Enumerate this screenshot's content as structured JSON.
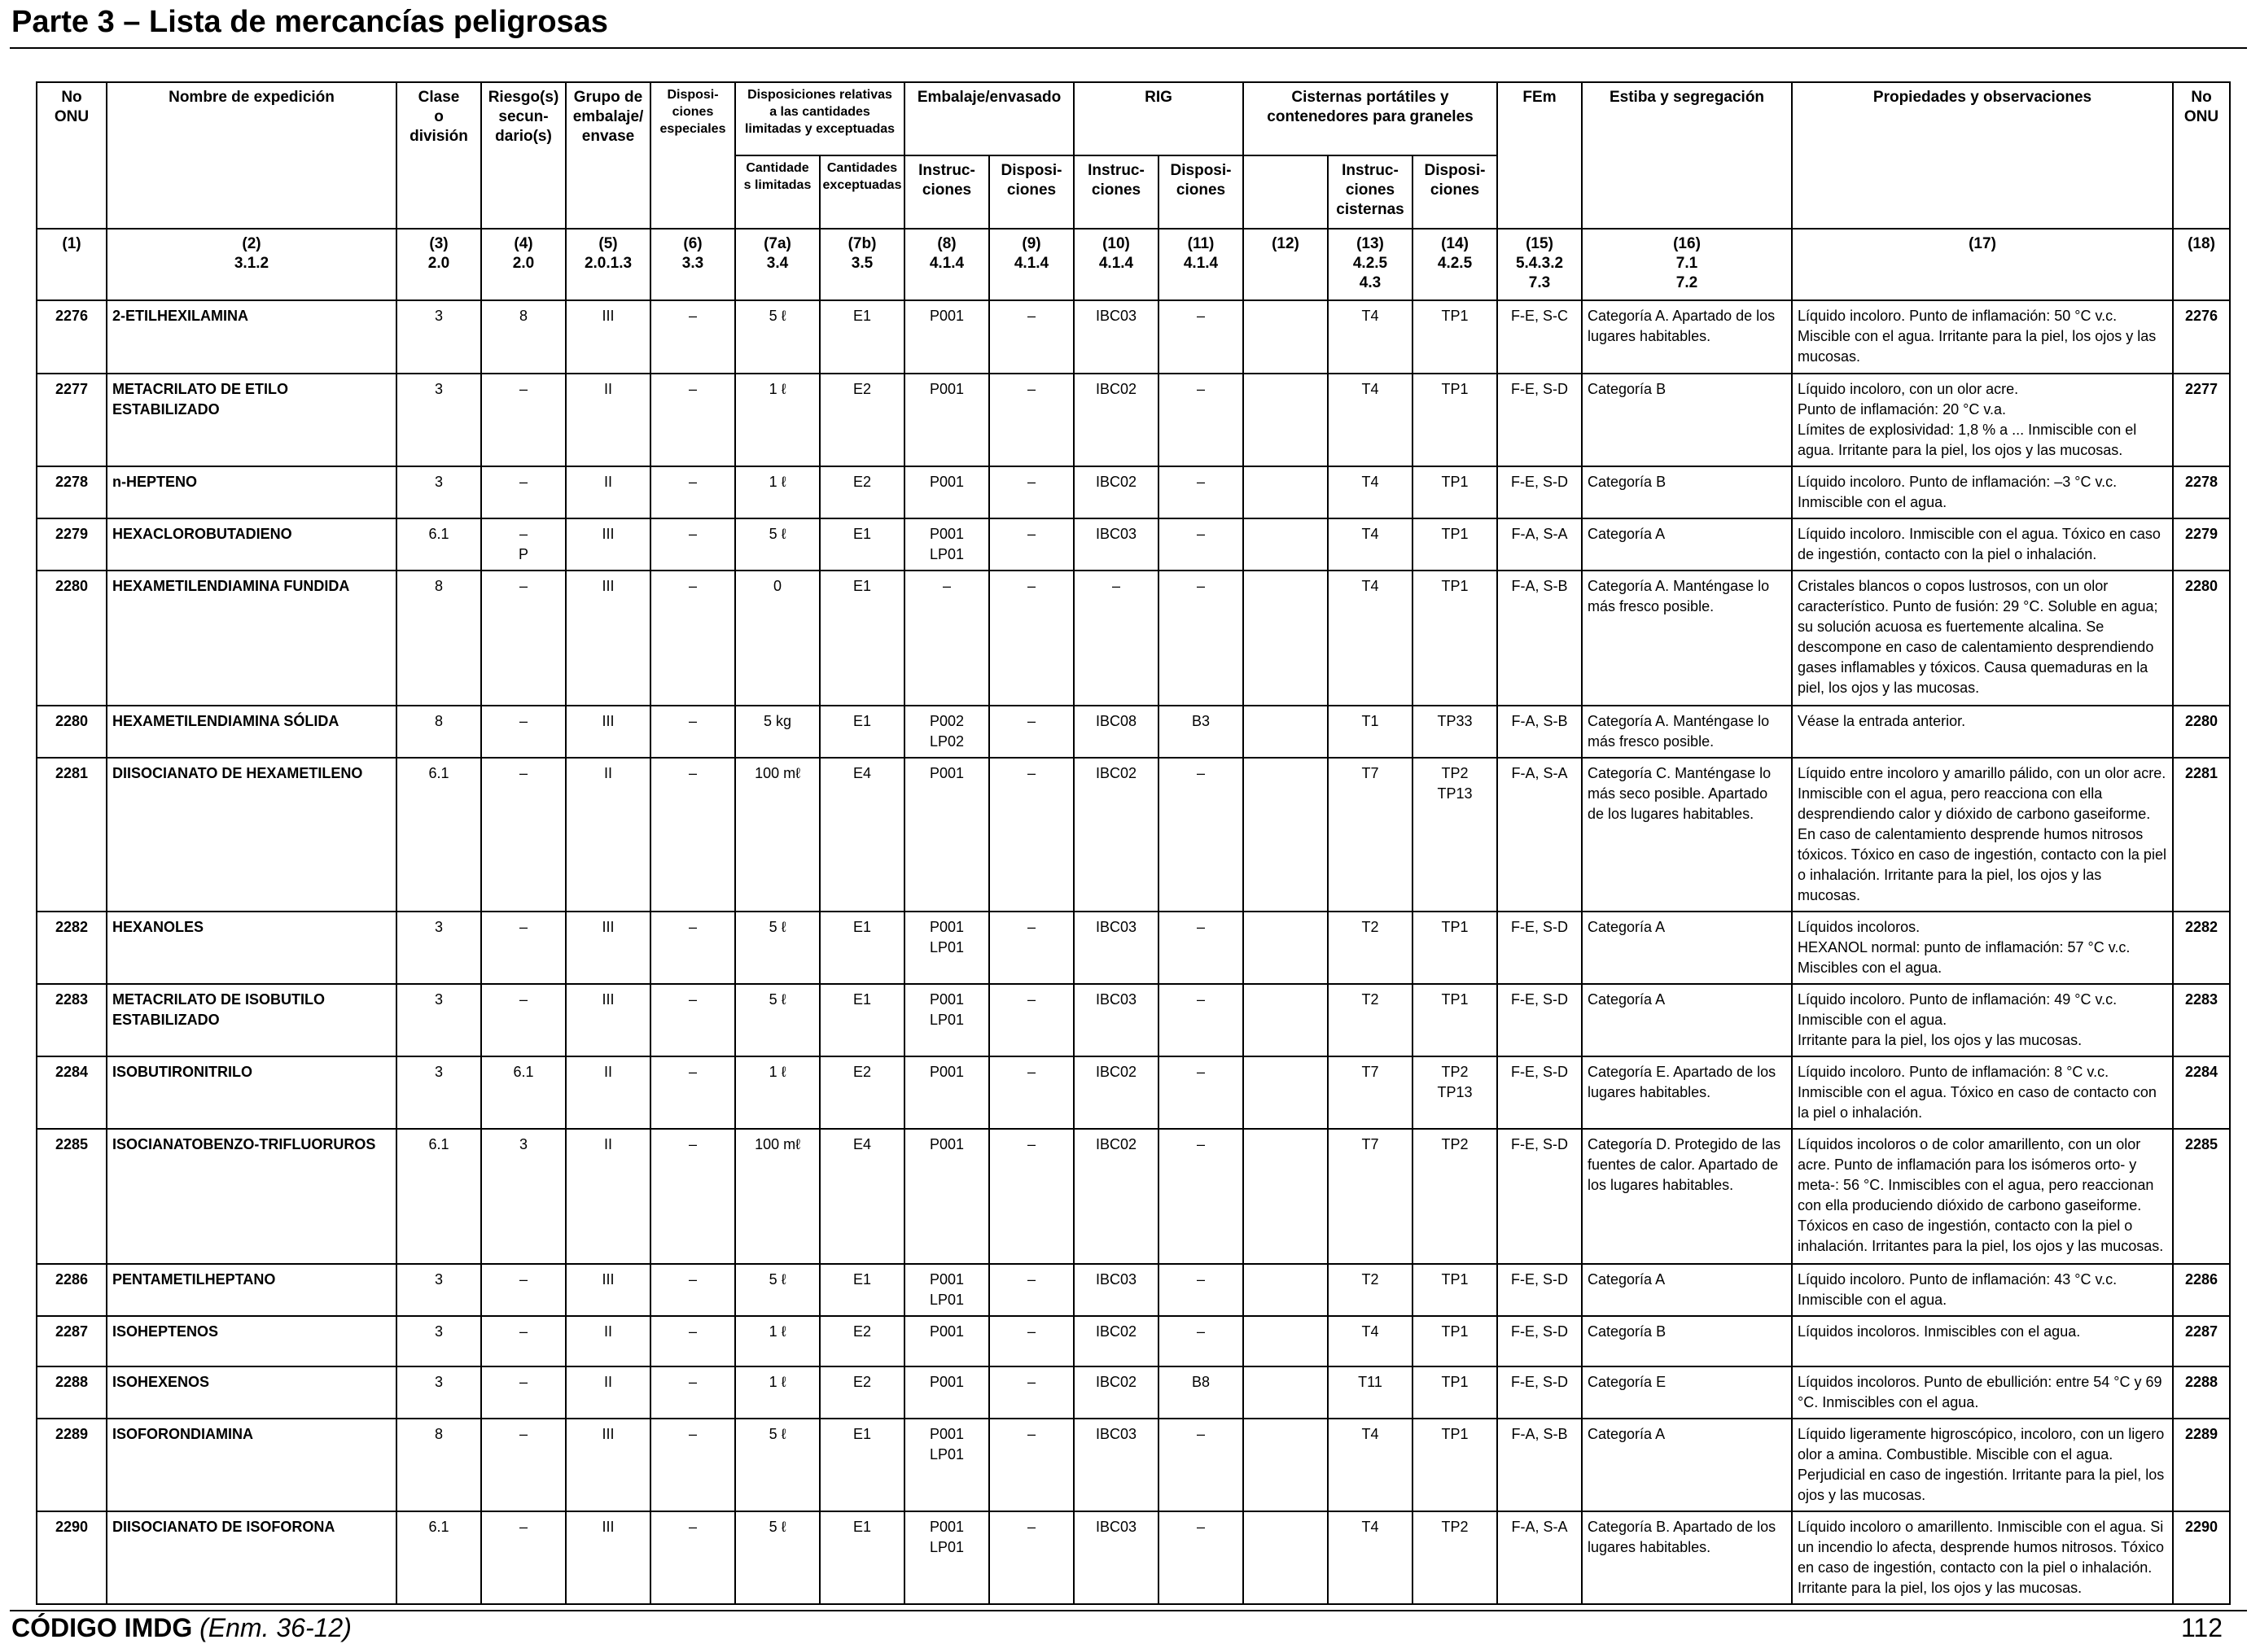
{
  "header": {
    "title": "Parte 3 – Lista de mercancías peligrosas"
  },
  "columns": {
    "onu": "No\nONU",
    "nombre": "Nombre de expedición",
    "clase": "Clase\no\ndivisión",
    "riesgo": "Riesgo(s)\nsecun-\ndario(s)",
    "grupo": "Grupo de\nembalaje/\nenvase",
    "disp_esp": "Disposi-\nciones\nespeciales",
    "cant_group": "Disposiciones relativas\na las cantidades\nlimitadas y exceptuadas",
    "cant_lim": "Cantidade\ns limitadas",
    "cant_exc": "Cantidades\nexceptuadas",
    "emb_group": "Embalaje/envasado",
    "emb_instr": "Instruc-\nciones",
    "emb_disp": "Disposi-\nciones",
    "rig_group": "RIG",
    "rig_instr": "Instruc-\nciones",
    "rig_disp": "Disposi-\nciones",
    "cist_group": "Cisternas portátiles y\ncontenedores para graneles",
    "cist_instr": "Instruc-\nciones\ncisternas",
    "cist_disp": "Disposi-\nciones",
    "fem": "FEm",
    "estiba": "Estiba y segregación",
    "prop": "Propiedades y observaciones",
    "onu_right": "No\nONU"
  },
  "refs": [
    "(1)",
    "(2)\n3.1.2",
    "(3)\n2.0",
    "(4)\n2.0",
    "(5)\n2.0.1.3",
    "(6)\n3.3",
    "(7a)\n3.4",
    "(7b)\n3.5",
    "(8)\n4.1.4",
    "(9)\n4.1.4",
    "(10)\n4.1.4",
    "(11)\n4.1.4",
    "(12)",
    "(13)\n4.2.5\n4.3",
    "(14)\n4.2.5",
    "(15)\n5.4.3.2\n7.3",
    "(16)\n7.1\n7.2",
    "(17)",
    "(18)"
  ],
  "rows": [
    {
      "onu": "2276",
      "name": "2-ETILHEXILAMINA",
      "clase": "3",
      "riesgo": "8",
      "grupo": "III",
      "esp": "–",
      "lim": "5 ℓ",
      "exc": "E1",
      "emb_i": "P001",
      "emb_d": "–",
      "rig_i": "IBC03",
      "rig_d": "–",
      "c12": "",
      "cist_i": "T4",
      "cist_d": "TP1",
      "fem": "F-E, S-C",
      "estiba": "Categoría A. Apartado de los lugares habitables.",
      "prop": "Líquido incoloro. Punto de inflamación: 50 °C v.c. Miscible con el agua. Irritante para la piel, los ojos y las mucosas.",
      "onu_r": "2276"
    },
    {
      "onu": "2277",
      "name": "METACRILATO DE ETILO ESTABILIZADO",
      "clase": "3",
      "riesgo": "–",
      "grupo": "II",
      "esp": "–",
      "lim": "1 ℓ",
      "exc": "E2",
      "emb_i": "P001",
      "emb_d": "–",
      "rig_i": "IBC02",
      "rig_d": "–",
      "c12": "",
      "cist_i": "T4",
      "cist_d": "TP1",
      "fem": "F-E, S-D",
      "estiba": "Categoría B",
      "prop": "Líquido incoloro, con un olor acre.\nPunto de inflamación: 20 °C v.a.\nLímites de explosividad: 1,8 % a ... Inmiscible con el agua. Irritante para la piel, los ojos y las mucosas.",
      "onu_r": "2277"
    },
    {
      "onu": "2278",
      "name": "n-HEPTENO",
      "clase": "3",
      "riesgo": "–",
      "grupo": "II",
      "esp": "–",
      "lim": "1 ℓ",
      "exc": "E2",
      "emb_i": "P001",
      "emb_d": "–",
      "rig_i": "IBC02",
      "rig_d": "–",
      "c12": "",
      "cist_i": "T4",
      "cist_d": "TP1",
      "fem": "F-E, S-D",
      "estiba": "Categoría B",
      "prop": "Líquido incoloro. Punto de inflamación: –3 °C v.c. Inmiscible con el agua.",
      "onu_r": "2278"
    },
    {
      "onu": "2279",
      "name": "HEXACLOROBUTADIENO",
      "clase": "6.1",
      "riesgo": "–\nP",
      "grupo": "III",
      "esp": "–",
      "lim": "5 ℓ",
      "exc": "E1",
      "emb_i": "P001\nLP01",
      "emb_d": "–",
      "rig_i": "IBC03",
      "rig_d": "–",
      "c12": "",
      "cist_i": "T4",
      "cist_d": "TP1",
      "fem": "F-A, S-A",
      "estiba": "Categoría A",
      "prop": "Líquido incoloro. Inmiscible con el agua. Tóxico en caso de ingestión, contacto con la piel o inhalación.",
      "onu_r": "2279"
    },
    {
      "onu": "2280",
      "name": "HEXAMETILENDIAMINA FUNDIDA",
      "clase": "8",
      "riesgo": "–",
      "grupo": "III",
      "esp": "–",
      "lim": "0",
      "exc": "E1",
      "emb_i": "–",
      "emb_d": "–",
      "rig_i": "–",
      "rig_d": "–",
      "c12": "",
      "cist_i": "T4",
      "cist_d": "TP1",
      "fem": "F-A, S-B",
      "estiba": "Categoría A. Manténgase lo más fresco posible.",
      "prop": "Cristales blancos o copos lustrosos, con un olor característico. Punto de fusión: 29 °C. Soluble en agua; su solución acuosa es fuertemente alcalina. Se descompone en caso de calentamiento desprendiendo gases inflamables y tóxicos. Causa quemaduras en la piel, los ojos y las mucosas.",
      "onu_r": "2280"
    },
    {
      "onu": "2280",
      "name": "HEXAMETILENDIAMINA SÓLIDA",
      "clase": "8",
      "riesgo": "–",
      "grupo": "III",
      "esp": "–",
      "lim": "5 kg",
      "exc": "E1",
      "emb_i": "P002\nLP02",
      "emb_d": "–",
      "rig_i": "IBC08",
      "rig_d": "B3",
      "c12": "",
      "cist_i": "T1",
      "cist_d": "TP33",
      "fem": "F-A, S-B",
      "estiba": "Categoría A. Manténgase lo más fresco posible.",
      "prop": "Véase la entrada anterior.",
      "onu_r": "2280"
    },
    {
      "onu": "2281",
      "name": "DIISOCIANATO DE HEXAMETILENO",
      "clase": "6.1",
      "riesgo": "–",
      "grupo": "II",
      "esp": "–",
      "lim": "100 mℓ",
      "exc": "E4",
      "emb_i": "P001",
      "emb_d": "–",
      "rig_i": "IBC02",
      "rig_d": "–",
      "c12": "",
      "cist_i": "T7",
      "cist_d": "TP2\nTP13",
      "fem": "F-A, S-A",
      "estiba": "Categoría C. Manténgase lo más seco posible. Apartado de los lugares habitables.",
      "prop": "Líquido entre incoloro y amarillo pálido, con un olor acre. Inmiscible con el agua, pero reacciona con ella desprendiendo calor y dióxido de carbono gaseiforme. En caso de calentamiento desprende humos nitrosos tóxicos. Tóxico en caso de ingestión, contacto con la piel o inhalación. Irritante para la piel, los ojos y las mucosas.",
      "onu_r": "2281"
    },
    {
      "onu": "2282",
      "name": "HEXANOLES",
      "clase": "3",
      "riesgo": "–",
      "grupo": "III",
      "esp": "–",
      "lim": "5 ℓ",
      "exc": "E1",
      "emb_i": "P001\nLP01",
      "emb_d": "–",
      "rig_i": "IBC03",
      "rig_d": "–",
      "c12": "",
      "cist_i": "T2",
      "cist_d": "TP1",
      "fem": "F-E, S-D",
      "estiba": "Categoría A",
      "prop": "Líquidos incoloros.\nHEXANOL normal: punto de inflamación: 57 °C v.c. Miscibles con el agua.",
      "onu_r": "2282"
    },
    {
      "onu": "2283",
      "name": "METACRILATO DE ISOBUTILO ESTABILIZADO",
      "clase": "3",
      "riesgo": "–",
      "grupo": "III",
      "esp": "–",
      "lim": "5 ℓ",
      "exc": "E1",
      "emb_i": "P001\nLP01",
      "emb_d": "–",
      "rig_i": "IBC03",
      "rig_d": "–",
      "c12": "",
      "cist_i": "T2",
      "cist_d": "TP1",
      "fem": "F-E, S-D",
      "estiba": "Categoría A",
      "prop": "Líquido incoloro. Punto de inflamación: 49 °C v.c. Inmiscible con el agua.\nIrritante para la piel, los ojos y las mucosas.",
      "onu_r": "2283"
    },
    {
      "onu": "2284",
      "name": "ISOBUTIRONITRILO",
      "clase": "3",
      "riesgo": "6.1",
      "grupo": "II",
      "esp": "–",
      "lim": "1 ℓ",
      "exc": "E2",
      "emb_i": "P001",
      "emb_d": "–",
      "rig_i": "IBC02",
      "rig_d": "–",
      "c12": "",
      "cist_i": "T7",
      "cist_d": "TP2\nTP13",
      "fem": "F-E, S-D",
      "estiba": "Categoría E. Apartado de los lugares habitables.",
      "prop": "Líquido incoloro. Punto de inflamación: 8 °C v.c. Inmiscible con el agua. Tóxico en caso de contacto con la piel o inhalación.",
      "onu_r": "2284"
    },
    {
      "onu": "2285",
      "name": "ISOCIANATOBENZO-TRIFLUORUROS",
      "clase": "6.1",
      "riesgo": "3",
      "grupo": "II",
      "esp": "–",
      "lim": "100 mℓ",
      "exc": "E4",
      "emb_i": "P001",
      "emb_d": "–",
      "rig_i": "IBC02",
      "rig_d": "–",
      "c12": "",
      "cist_i": "T7",
      "cist_d": "TP2",
      "fem": "F-E, S-D",
      "estiba": "Categoría D. Protegido de las fuentes de calor. Apartado de los lugares habitables.",
      "prop": "Líquidos incoloros o de color amarillento, con un olor acre. Punto de inflamación para los isómeros orto- y meta-: 56 °C. Inmiscibles con el agua, pero reaccionan con ella produciendo dióxido de carbono gaseiforme. Tóxicos en caso de ingestión, contacto con la piel o inhalación. Irritantes para la piel, los ojos y las mucosas.",
      "onu_r": "2285"
    },
    {
      "onu": "2286",
      "name": "PENTAMETILHEPTANO",
      "clase": "3",
      "riesgo": "–",
      "grupo": "III",
      "esp": "–",
      "lim": "5 ℓ",
      "exc": "E1",
      "emb_i": "P001\nLP01",
      "emb_d": "–",
      "rig_i": "IBC03",
      "rig_d": "–",
      "c12": "",
      "cist_i": "T2",
      "cist_d": "TP1",
      "fem": "F-E, S-D",
      "estiba": "Categoría A",
      "prop": "Líquido incoloro. Punto de inflamación: 43 °C v.c. Inmiscible con el agua.",
      "onu_r": "2286"
    },
    {
      "onu": "2287",
      "name": "ISOHEPTENOS",
      "clase": "3",
      "riesgo": "–",
      "grupo": "II",
      "esp": "–",
      "lim": "1 ℓ",
      "exc": "E2",
      "emb_i": "P001",
      "emb_d": "–",
      "rig_i": "IBC02",
      "rig_d": "–",
      "c12": "",
      "cist_i": "T4",
      "cist_d": "TP1",
      "fem": "F-E, S-D",
      "estiba": "Categoría B",
      "prop": "Líquidos incoloros. Inmiscibles con el agua.",
      "onu_r": "2287"
    },
    {
      "onu": "2288",
      "name": "ISOHEXENOS",
      "clase": "3",
      "riesgo": "–",
      "grupo": "II",
      "esp": "–",
      "lim": "1 ℓ",
      "exc": "E2",
      "emb_i": "P001",
      "emb_d": "–",
      "rig_i": "IBC02",
      "rig_d": "B8",
      "c12": "",
      "cist_i": "T11",
      "cist_d": "TP1",
      "fem": "F-E, S-D",
      "estiba": "Categoría E",
      "prop": "Líquidos incoloros. Punto de ebullición: entre 54 °C y 69 °C. Inmiscibles con el agua.",
      "onu_r": "2288"
    },
    {
      "onu": "2289",
      "name": "ISOFORONDIAMINA",
      "clase": "8",
      "riesgo": "–",
      "grupo": "III",
      "esp": "–",
      "lim": "5 ℓ",
      "exc": "E1",
      "emb_i": "P001\nLP01",
      "emb_d": "–",
      "rig_i": "IBC03",
      "rig_d": "–",
      "c12": "",
      "cist_i": "T4",
      "cist_d": "TP1",
      "fem": "F-A, S-B",
      "estiba": "Categoría A",
      "prop": "Líquido ligeramente higroscópico, incoloro, con un ligero olor a amina. Combustible. Miscible con el agua. Perjudicial en caso de ingestión. Irritante para la piel, los ojos y las mucosas.",
      "onu_r": "2289"
    },
    {
      "onu": "2290",
      "name": "DIISOCIANATO DE ISOFORONA",
      "clase": "6.1",
      "riesgo": "–",
      "grupo": "III",
      "esp": "–",
      "lim": "5 ℓ",
      "exc": "E1",
      "emb_i": "P001\nLP01",
      "emb_d": "–",
      "rig_i": "IBC03",
      "rig_d": "–",
      "c12": "",
      "cist_i": "T4",
      "cist_d": "TP2",
      "fem": "F-A, S-A",
      "estiba": "Categoría B. Apartado de los lugares habitables.",
      "prop": "Líquido incoloro o amarillento. Inmiscible con el agua. Si un incendio lo afecta, desprende humos nitrosos. Tóxico en caso de ingestión, contacto con la piel o inhalación. Irritante para la piel, los ojos y las mucosas.",
      "onu_r": "2290"
    }
  ],
  "footer": {
    "code": "CÓDIGO IMDG",
    "amendment": "(Enm. 36-12)",
    "page": "112"
  }
}
